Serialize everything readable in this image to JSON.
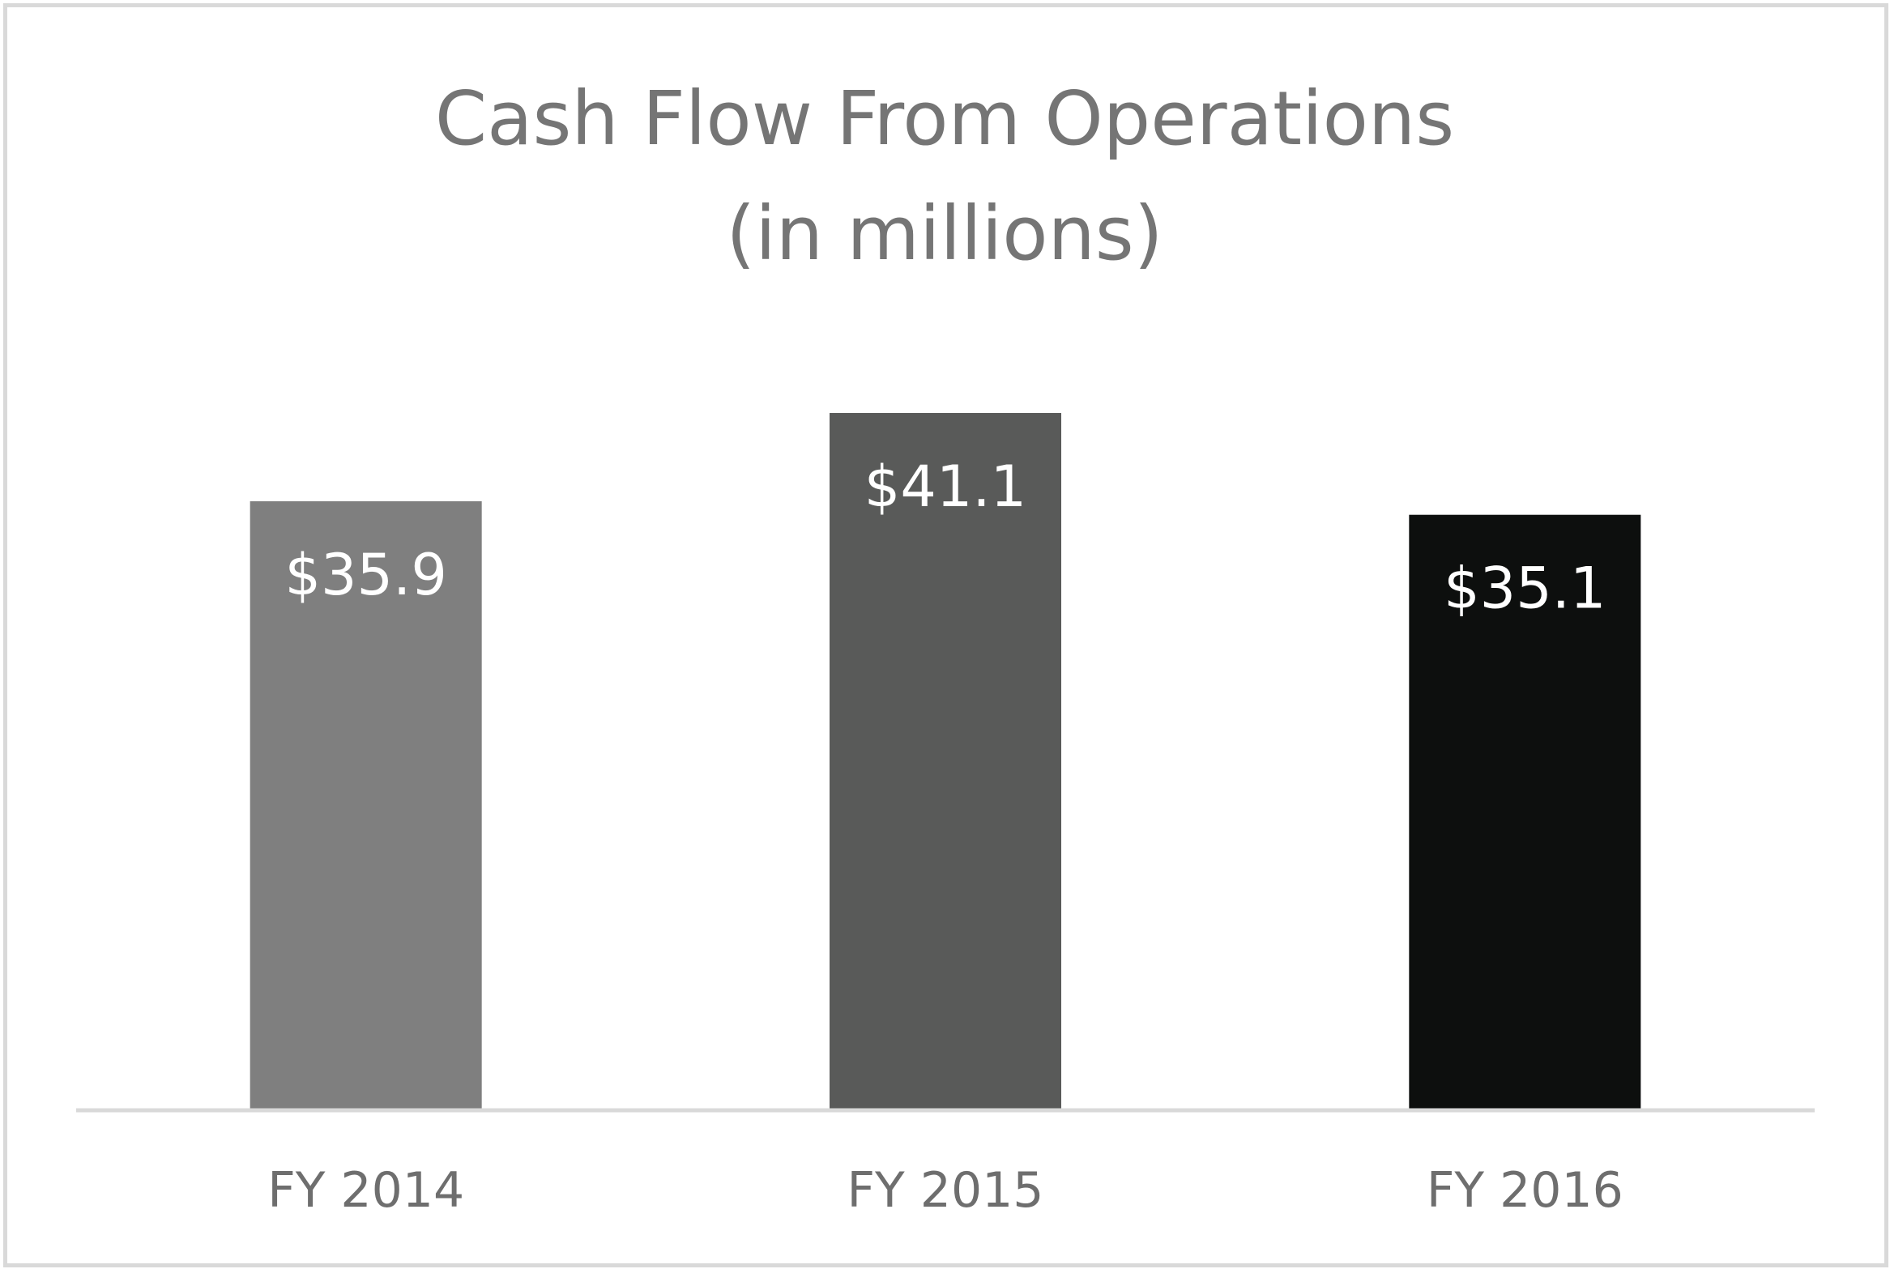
{
  "chart_data": {
    "type": "bar",
    "title_lines": [
      "Cash Flow From Operations",
      "(in millions)"
    ],
    "categories": [
      "FY 2014",
      "FY 2015",
      "FY 2016"
    ],
    "values": [
      35.9,
      41.1,
      35.1
    ],
    "data_labels": [
      "$35.9",
      "$41.1",
      "$35.1"
    ],
    "bar_colors": [
      "#7f7f7f",
      "#595a59",
      "#0d0f0e"
    ],
    "axis_color": "#d9d9d9",
    "xlabel": "",
    "ylabel": "",
    "ylim": [
      0,
      42.5
    ],
    "grid": false,
    "legend": "none"
  }
}
